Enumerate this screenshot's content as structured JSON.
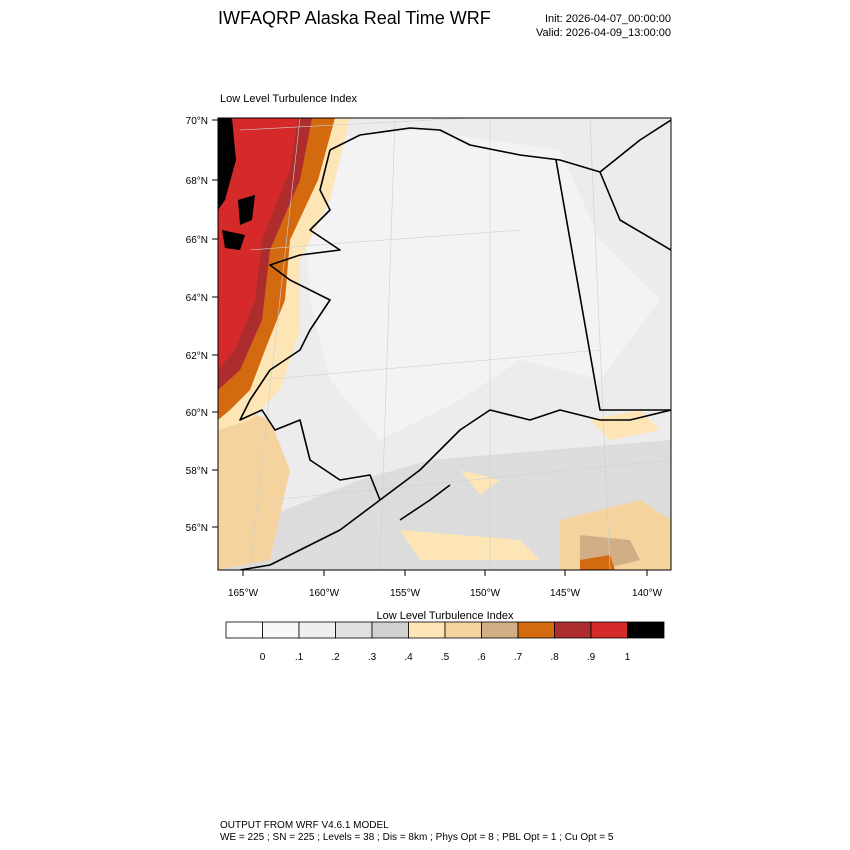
{
  "header": {
    "title": "IWFAQRP Alaska Real Time WRF",
    "init": "Init: 2026-04-07_00:00:00",
    "valid": "Valid: 2026-04-09_13:00:00"
  },
  "map": {
    "title": "Low Level Turbulence Index",
    "lat_labels": [
      "70°N",
      "68°N",
      "66°N",
      "64°N",
      "62°N",
      "60°N",
      "58°N",
      "56°N"
    ],
    "lon_labels": [
      "165°W",
      "160°W",
      "155°W",
      "150°W",
      "145°W",
      "140°W"
    ]
  },
  "colorbar": {
    "title": "Low Level Turbulence Index",
    "colors": [
      "#ffffff",
      "#f7f7f7",
      "#efefef",
      "#e0e0e0",
      "#d0d0d0",
      "#fde5b5",
      "#f5d39f",
      "#d2ae86",
      "#d36a0f",
      "#ad2d2f",
      "#d62a2a",
      "#000000"
    ],
    "labels": [
      "0",
      ".1",
      ".2",
      ".3",
      ".4",
      ".5",
      ".6",
      ".7",
      ".8",
      ".9",
      "1"
    ]
  },
  "footer": {
    "line1": "OUTPUT FROM WRF V4.6.1 MODEL",
    "line2": "WE = 225 ; SN = 225 ; Levels = 38 ; Dis = 8km ; Phys Opt = 8 ; PBL Opt = 1 ; Cu Opt = 5"
  }
}
